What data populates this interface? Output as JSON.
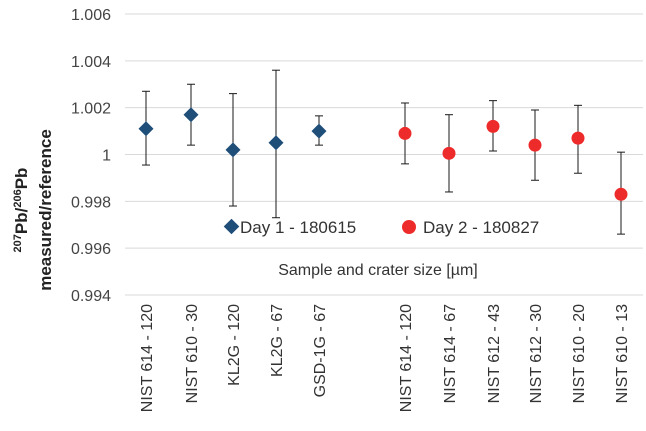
{
  "chart_data": {
    "type": "scatter",
    "ylabel_line1_sup1": "207",
    "ylabel_line1_mid": "Pb/",
    "ylabel_line1_sup2": "206",
    "ylabel_line1_end": "Pb",
    "ylabel_line2": "measured/reference",
    "xlabel": "Sample and crater size [µm]",
    "ylim": [
      0.994,
      1.006
    ],
    "y_ticks": [
      0.994,
      0.996,
      0.998,
      1,
      1.002,
      1.004,
      1.006
    ],
    "y_tick_labels": [
      "0.994",
      "0.996",
      "0.998",
      "1",
      "1.002",
      "1.004",
      "1.006"
    ],
    "grid": true,
    "legend_position": "bottom-center",
    "series": [
      {
        "name": "Day 1 - 180615",
        "marker": "diamond",
        "color": "#1f4e79",
        "points": [
          {
            "label": "NIST 614 - 120",
            "y": 1.0011,
            "err_low": 0.99955,
            "err_high": 1.0027
          },
          {
            "label": "NIST 610 - 30",
            "y": 1.0017,
            "err_low": 1.0004,
            "err_high": 1.003
          },
          {
            "label": "KL2G - 120",
            "y": 1.0002,
            "err_low": 0.9978,
            "err_high": 1.0026
          },
          {
            "label": "KL2G - 67",
            "y": 1.0005,
            "err_low": 0.9973,
            "err_high": 1.0036
          },
          {
            "label": "GSD-1G - 67",
            "y": 1.001,
            "err_low": 1.0004,
            "err_high": 1.00165
          }
        ]
      },
      {
        "name": "Day 2 - 180827",
        "marker": "circle",
        "color": "#ee2b2b",
        "points": [
          {
            "label": "NIST 614 - 120",
            "y": 1.0009,
            "err_low": 0.9996,
            "err_high": 1.0022
          },
          {
            "label": "NIST 614 - 67",
            "y": 1.00005,
            "err_low": 0.9984,
            "err_high": 1.0017
          },
          {
            "label": "NIST 612 - 43",
            "y": 1.0012,
            "err_low": 1.00015,
            "err_high": 1.0023
          },
          {
            "label": "NIST 612 - 30",
            "y": 1.0004,
            "err_low": 0.9989,
            "err_high": 1.0019
          },
          {
            "label": "NIST 610 - 20",
            "y": 1.0007,
            "err_low": 0.9992,
            "err_high": 1.0021
          },
          {
            "label": "NIST 610 - 13",
            "y": 0.9983,
            "err_low": 0.9966,
            "err_high": 1.0001
          }
        ]
      }
    ]
  }
}
